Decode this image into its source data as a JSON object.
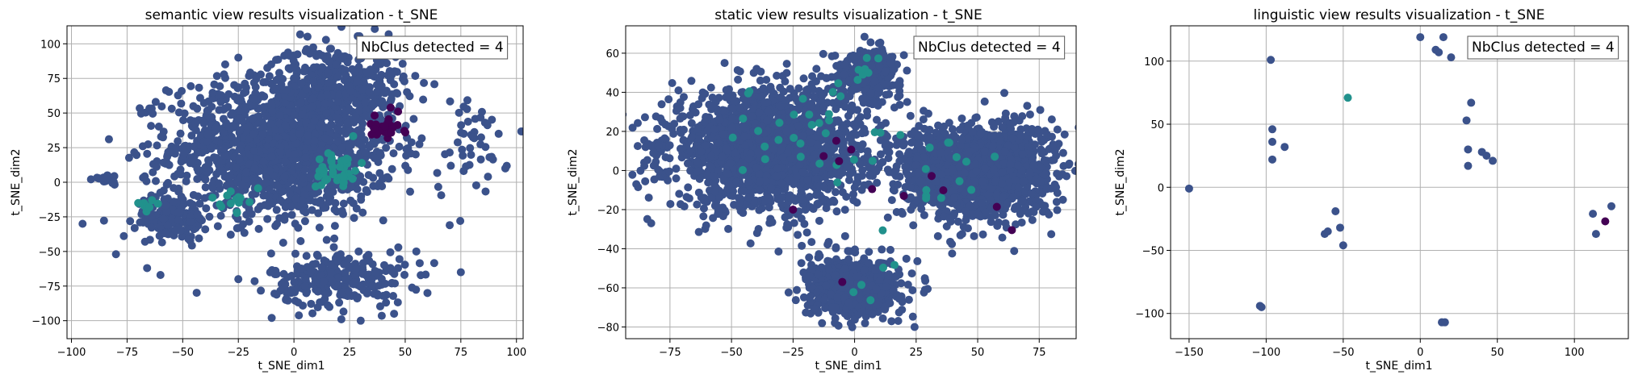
{
  "colors": {
    "main_cluster": "#3b528b",
    "cluster_teal": "#21918c",
    "cluster_dark": "#440154",
    "cluster_light": "#5ec962",
    "grid": "#b0b0b0"
  },
  "chart_data": [
    {
      "type": "scatter",
      "title": "semantic view results visualization - t_SNE",
      "xlabel": "t_SNE_dim1",
      "ylabel": "t_SNE_dim2",
      "xlim": [
        -102,
        103
      ],
      "ylim": [
        -113,
        113
      ],
      "xticks": [
        -100,
        -75,
        -50,
        -25,
        0,
        25,
        50,
        75,
        100
      ],
      "yticks": [
        -100,
        -75,
        -50,
        -25,
        0,
        25,
        50,
        75,
        100
      ],
      "grid": true,
      "annotation": "NbClus detected = 4",
      "annotation_position": "top-right",
      "clusters": [
        {
          "cx": -5,
          "cy": 25,
          "sx": 25,
          "sy": 25,
          "n": 1500,
          "color": "main_cluster"
        },
        {
          "cx": 20,
          "cy": 72,
          "sx": 15,
          "sy": 14,
          "n": 300,
          "color": "main_cluster"
        },
        {
          "cx": 20,
          "cy": -70,
          "sx": 15,
          "sy": 10,
          "n": 250,
          "color": "main_cluster"
        },
        {
          "cx": 80,
          "cy": 25,
          "sx": 8,
          "sy": 20,
          "n": 40,
          "color": "main_cluster"
        },
        {
          "cx": -55,
          "cy": -25,
          "sx": 8,
          "sy": 8,
          "n": 150,
          "color": "main_cluster"
        },
        {
          "cx": -85,
          "cy": 2,
          "sx": 4,
          "sy": 2,
          "n": 20,
          "color": "main_cluster"
        },
        {
          "cx": 20,
          "cy": 10,
          "sx": 5,
          "sy": 8,
          "n": 40,
          "color": "cluster_teal"
        },
        {
          "cx": -27,
          "cy": -13,
          "sx": 3,
          "sy": 4,
          "n": 15,
          "color": "cluster_teal"
        },
        {
          "cx": -65,
          "cy": -16,
          "sx": 2,
          "sy": 2,
          "n": 8,
          "color": "cluster_teal"
        },
        {
          "cx": 40,
          "cy": 40,
          "sx": 5,
          "sy": 5,
          "n": 25,
          "color": "cluster_dark"
        }
      ],
      "points": [
        [
          -95,
          -30,
          "main_cluster"
        ],
        [
          -80,
          -52,
          "main_cluster"
        ],
        [
          -66,
          -62,
          "main_cluster"
        ],
        [
          -60,
          -67,
          "main_cluster"
        ],
        [
          -25,
          -70,
          "main_cluster"
        ],
        [
          -25,
          90,
          "main_cluster"
        ],
        [
          70,
          -31,
          "main_cluster"
        ],
        [
          -70,
          -15,
          "cluster_teal"
        ],
        [
          5,
          -75,
          "main_cluster"
        ],
        [
          30,
          -100,
          "main_cluster"
        ],
        [
          -10,
          -98,
          "main_cluster"
        ],
        [
          60,
          -80,
          "main_cluster"
        ],
        [
          45,
          -95,
          "main_cluster"
        ],
        [
          75,
          -65,
          "main_cluster"
        ],
        [
          95,
          10,
          "main_cluster"
        ],
        [
          92,
          35,
          "main_cluster"
        ],
        [
          55,
          -50,
          "main_cluster"
        ],
        [
          35,
          -70,
          "main_cluster"
        ]
      ]
    },
    {
      "type": "scatter",
      "title": "static view results visualization - t_SNE",
      "xlabel": "t_SNE_dim1",
      "ylabel": "t_SNE_dim2",
      "xlim": [
        -93,
        90
      ],
      "ylim": [
        -86,
        74
      ],
      "xticks": [
        -75,
        -50,
        -25,
        0,
        25,
        50,
        75
      ],
      "yticks": [
        -80,
        -60,
        -40,
        -20,
        0,
        20,
        40,
        60
      ],
      "grid": true,
      "annotation": "NbClus detected = 4",
      "annotation_position": "top-right",
      "clusters": [
        {
          "cx": -35,
          "cy": 10,
          "sx": 20,
          "sy": 15,
          "n": 1800,
          "color": "main_cluster"
        },
        {
          "cx": 5,
          "cy": 50,
          "sx": 7,
          "sy": 6,
          "n": 300,
          "color": "main_cluster"
        },
        {
          "cx": 50,
          "cy": 0,
          "sx": 15,
          "sy": 12,
          "n": 1500,
          "color": "main_cluster"
        },
        {
          "cx": 0,
          "cy": -60,
          "sx": 9,
          "sy": 7,
          "n": 800,
          "color": "main_cluster"
        },
        {
          "cx": -80,
          "cy": 12,
          "sx": 2,
          "sy": 1,
          "n": 20,
          "color": "main_cluster"
        },
        {
          "cx": -20,
          "cy": 20,
          "sx": 15,
          "sy": 15,
          "n": 30,
          "color": "cluster_teal"
        },
        {
          "cx": 40,
          "cy": -5,
          "sx": 15,
          "sy": 10,
          "n": 15,
          "color": "cluster_teal"
        },
        {
          "cx": 5,
          "cy": 50,
          "sx": 7,
          "sy": 5,
          "n": 8,
          "color": "cluster_teal"
        },
        {
          "cx": 0,
          "cy": -60,
          "sx": 8,
          "sy": 6,
          "n": 5,
          "color": "cluster_teal"
        },
        {
          "cx": -10,
          "cy": 5,
          "sx": 10,
          "sy": 8,
          "n": 4,
          "color": "cluster_dark"
        },
        {
          "cx": 40,
          "cy": -8,
          "sx": 15,
          "sy": 10,
          "n": 5,
          "color": "cluster_dark"
        }
      ],
      "points": [
        [
          -5,
          -57,
          "cluster_dark"
        ],
        [
          -25,
          -20,
          "cluster_dark"
        ],
        [
          20,
          -13,
          "cluster_dark"
        ]
      ]
    },
    {
      "type": "scatter",
      "title": "linguistic view results visualization - t_SNE",
      "xlabel": "t_SNE_dim1",
      "ylabel": "t_SNE_dim2",
      "xlim": [
        -162,
        135
      ],
      "ylim": [
        -120,
        128
      ],
      "xticks": [
        -150,
        -100,
        -50,
        0,
        50,
        100
      ],
      "yticks": [
        -100,
        -50,
        0,
        50,
        100
      ],
      "grid": true,
      "annotation": "NbClus detected = 4",
      "annotation_position": "top-right",
      "clusters": [],
      "points": [
        [
          -150,
          -1,
          "main_cluster"
        ],
        [
          -97,
          101,
          "main_cluster"
        ],
        [
          -96,
          46,
          "main_cluster"
        ],
        [
          -96,
          36,
          "main_cluster"
        ],
        [
          -96,
          22,
          "main_cluster"
        ],
        [
          -88,
          32,
          "main_cluster"
        ],
        [
          -104,
          -94,
          "main_cluster"
        ],
        [
          -103,
          -95,
          "main_cluster"
        ],
        [
          -62,
          -37,
          "main_cluster"
        ],
        [
          -60,
          -35,
          "main_cluster"
        ],
        [
          -55,
          -19,
          "main_cluster"
        ],
        [
          -52,
          -32,
          "main_cluster"
        ],
        [
          -50,
          -46,
          "main_cluster"
        ],
        [
          -47,
          71,
          "cluster_teal"
        ],
        [
          0,
          119,
          "main_cluster"
        ],
        [
          10,
          109,
          "main_cluster"
        ],
        [
          12,
          107,
          "main_cluster"
        ],
        [
          15,
          119,
          "main_cluster"
        ],
        [
          20,
          103,
          "main_cluster"
        ],
        [
          14,
          -107,
          "main_cluster"
        ],
        [
          16,
          -107,
          "main_cluster"
        ],
        [
          30,
          53,
          "main_cluster"
        ],
        [
          33,
          67,
          "main_cluster"
        ],
        [
          31,
          30,
          "main_cluster"
        ],
        [
          31,
          17,
          "main_cluster"
        ],
        [
          40,
          28,
          "main_cluster"
        ],
        [
          43,
          25,
          "main_cluster"
        ],
        [
          47,
          21,
          "main_cluster"
        ],
        [
          112,
          -21,
          "main_cluster"
        ],
        [
          114,
          -37,
          "main_cluster"
        ],
        [
          120,
          -27,
          "cluster_dark"
        ],
        [
          124,
          -15,
          "main_cluster"
        ]
      ]
    }
  ]
}
